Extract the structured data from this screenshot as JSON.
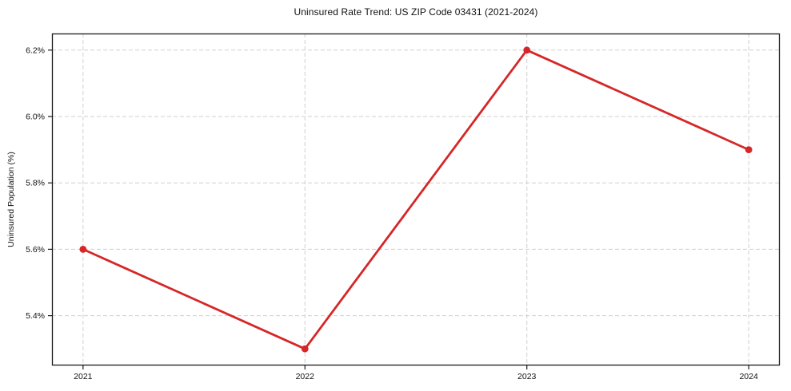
{
  "chart_data": {
    "type": "line",
    "title": "Uninsured Rate Trend: US ZIP Code 03431 (2021-2024)",
    "xlabel": "",
    "ylabel": "Uninsured Population (%)",
    "x": [
      2021,
      2022,
      2023,
      2024
    ],
    "series": [
      {
        "name": "uninsured-rate",
        "values": [
          5.6,
          5.3,
          6.2,
          5.9
        ],
        "color": "#d62728"
      }
    ],
    "x_tick_labels": [
      "2021",
      "2022",
      "2023",
      "2024"
    ],
    "y_ticks": [
      5.4,
      5.6,
      5.8,
      6.0,
      6.2
    ],
    "y_tick_labels": [
      "5.4%",
      "5.6%",
      "5.8%",
      "6.0%",
      "6.2%"
    ],
    "xlim": [
      2020.86,
      2024.14
    ],
    "ylim": [
      5.25,
      6.25
    ],
    "grid": true,
    "legend_position": "none",
    "colors": {
      "line": "#d62728",
      "grid": "#cfcfcf",
      "spine": "#1a1a1a",
      "background": "#ffffff"
    }
  }
}
